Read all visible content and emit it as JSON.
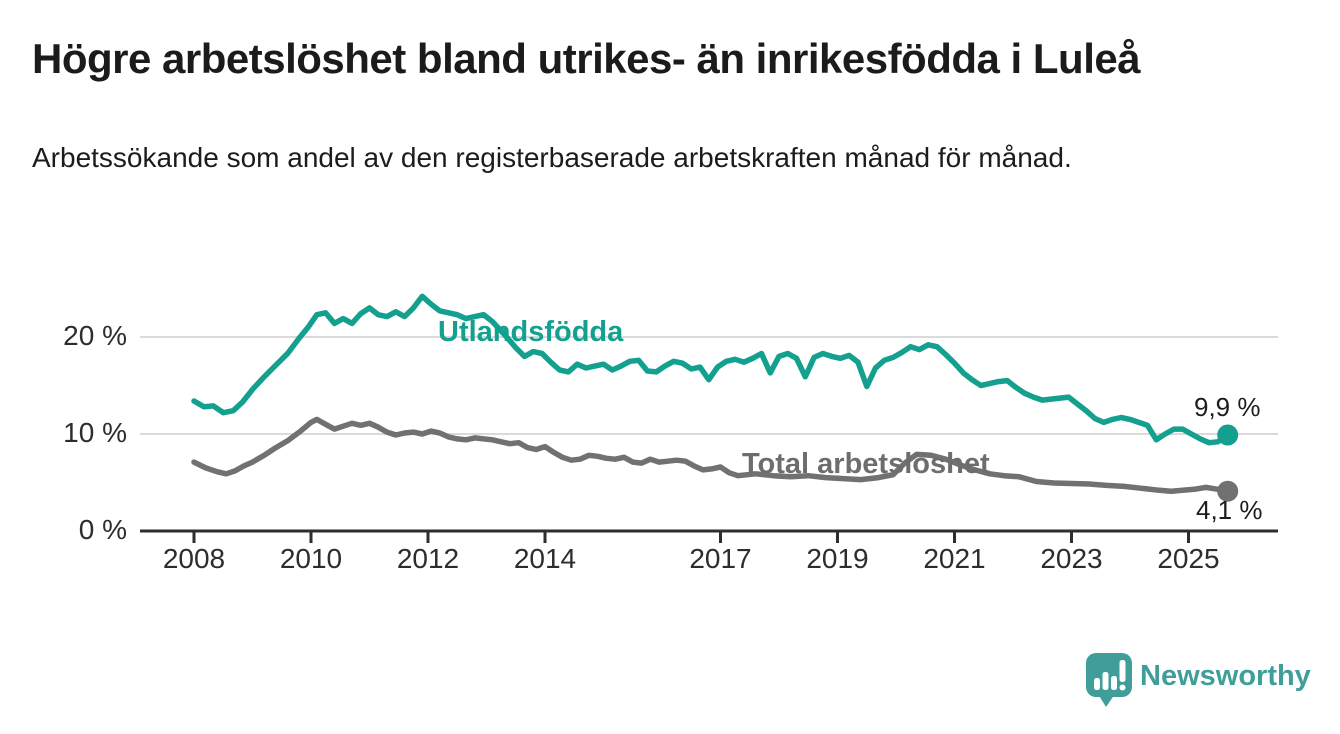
{
  "title": "Högre arbetslöshet bland utrikes- än inrikesfödda i Luleå",
  "subtitle": "Arbetssökande som andel av den registerbaserade arbetskraften månad för månad.",
  "chart_data": {
    "type": "line",
    "unit": "%",
    "legend_position": "inline-labels",
    "grid": true,
    "x_axis": {
      "ticks": [
        2008,
        2010,
        2012,
        2014,
        2017,
        2019,
        2021,
        2023,
        2025
      ],
      "range": [
        2007.1,
        2026.4
      ]
    },
    "y_axis": {
      "ticks": [
        {
          "value": 0,
          "label": "0 %"
        },
        {
          "value": 10,
          "label": "10 %"
        },
        {
          "value": 20,
          "label": "20 %"
        }
      ],
      "range": [
        0,
        25
      ]
    },
    "series": [
      {
        "name": "Utlandsfödda",
        "color": "#13a08e",
        "end_label": "9,9 %",
        "end_value": 9.9,
        "points": [
          [
            2008.0,
            13.4
          ],
          [
            2008.17,
            12.8
          ],
          [
            2008.33,
            12.9
          ],
          [
            2008.5,
            12.2
          ],
          [
            2008.67,
            12.4
          ],
          [
            2008.83,
            13.3
          ],
          [
            2009.0,
            14.6
          ],
          [
            2009.2,
            15.9
          ],
          [
            2009.4,
            17.1
          ],
          [
            2009.6,
            18.3
          ],
          [
            2009.8,
            19.9
          ],
          [
            2009.95,
            21.0
          ],
          [
            2010.1,
            22.3
          ],
          [
            2010.25,
            22.5
          ],
          [
            2010.4,
            21.4
          ],
          [
            2010.55,
            21.9
          ],
          [
            2010.7,
            21.4
          ],
          [
            2010.85,
            22.4
          ],
          [
            2011.0,
            23.0
          ],
          [
            2011.15,
            22.3
          ],
          [
            2011.3,
            22.1
          ],
          [
            2011.45,
            22.6
          ],
          [
            2011.6,
            22.1
          ],
          [
            2011.75,
            23.0
          ],
          [
            2011.9,
            24.2
          ],
          [
            2012.05,
            23.4
          ],
          [
            2012.2,
            22.7
          ],
          [
            2012.35,
            22.5
          ],
          [
            2012.5,
            22.3
          ],
          [
            2012.65,
            21.9
          ],
          [
            2012.8,
            22.1
          ],
          [
            2012.95,
            22.3
          ],
          [
            2013.1,
            21.6
          ],
          [
            2013.3,
            20.3
          ],
          [
            2013.5,
            18.9
          ],
          [
            2013.65,
            18.0
          ],
          [
            2013.8,
            18.5
          ],
          [
            2013.95,
            18.3
          ],
          [
            2014.1,
            17.4
          ],
          [
            2014.25,
            16.6
          ],
          [
            2014.4,
            16.4
          ],
          [
            2014.55,
            17.2
          ],
          [
            2014.7,
            16.8
          ],
          [
            2014.85,
            17.0
          ],
          [
            2015.0,
            17.2
          ],
          [
            2015.15,
            16.6
          ],
          [
            2015.3,
            17.0
          ],
          [
            2015.45,
            17.5
          ],
          [
            2015.6,
            17.6
          ],
          [
            2015.75,
            16.5
          ],
          [
            2015.9,
            16.4
          ],
          [
            2016.05,
            17.0
          ],
          [
            2016.2,
            17.5
          ],
          [
            2016.35,
            17.3
          ],
          [
            2016.5,
            16.7
          ],
          [
            2016.65,
            16.9
          ],
          [
            2016.8,
            15.6
          ],
          [
            2016.95,
            16.9
          ],
          [
            2017.1,
            17.5
          ],
          [
            2017.25,
            17.7
          ],
          [
            2017.4,
            17.4
          ],
          [
            2017.55,
            17.8
          ],
          [
            2017.7,
            18.3
          ],
          [
            2017.85,
            16.3
          ],
          [
            2018.0,
            18.0
          ],
          [
            2018.15,
            18.3
          ],
          [
            2018.3,
            17.8
          ],
          [
            2018.45,
            15.9
          ],
          [
            2018.6,
            17.9
          ],
          [
            2018.75,
            18.3
          ],
          [
            2018.9,
            18.0
          ],
          [
            2019.05,
            17.8
          ],
          [
            2019.2,
            18.1
          ],
          [
            2019.35,
            17.4
          ],
          [
            2019.5,
            14.9
          ],
          [
            2019.65,
            16.8
          ],
          [
            2019.8,
            17.6
          ],
          [
            2019.95,
            17.9
          ],
          [
            2020.1,
            18.4
          ],
          [
            2020.25,
            19.0
          ],
          [
            2020.4,
            18.7
          ],
          [
            2020.55,
            19.2
          ],
          [
            2020.7,
            19.0
          ],
          [
            2020.85,
            18.2
          ],
          [
            2021.0,
            17.3
          ],
          [
            2021.15,
            16.3
          ],
          [
            2021.3,
            15.6
          ],
          [
            2021.45,
            15.0
          ],
          [
            2021.6,
            15.2
          ],
          [
            2021.75,
            15.4
          ],
          [
            2021.9,
            15.5
          ],
          [
            2022.05,
            14.8
          ],
          [
            2022.2,
            14.2
          ],
          [
            2022.35,
            13.8
          ],
          [
            2022.5,
            13.5
          ],
          [
            2022.65,
            13.6
          ],
          [
            2022.8,
            13.7
          ],
          [
            2022.95,
            13.8
          ],
          [
            2023.1,
            13.1
          ],
          [
            2023.25,
            12.4
          ],
          [
            2023.4,
            11.6
          ],
          [
            2023.55,
            11.2
          ],
          [
            2023.7,
            11.5
          ],
          [
            2023.85,
            11.7
          ],
          [
            2024.0,
            11.5
          ],
          [
            2024.15,
            11.2
          ],
          [
            2024.3,
            10.9
          ],
          [
            2024.45,
            9.4
          ],
          [
            2024.6,
            10.0
          ],
          [
            2024.75,
            10.5
          ],
          [
            2024.9,
            10.5
          ],
          [
            2025.05,
            10.0
          ],
          [
            2025.2,
            9.5
          ],
          [
            2025.35,
            9.1
          ],
          [
            2025.5,
            9.2
          ],
          [
            2025.67,
            9.9
          ]
        ]
      },
      {
        "name": "Total arbetslöshet",
        "color": "#717171",
        "end_label": "4,1 %",
        "end_value": 4.1,
        "points": [
          [
            2008.0,
            7.1
          ],
          [
            2008.2,
            6.5
          ],
          [
            2008.4,
            6.1
          ],
          [
            2008.55,
            5.9
          ],
          [
            2008.7,
            6.2
          ],
          [
            2008.85,
            6.7
          ],
          [
            2009.0,
            7.1
          ],
          [
            2009.2,
            7.8
          ],
          [
            2009.4,
            8.6
          ],
          [
            2009.6,
            9.3
          ],
          [
            2009.8,
            10.2
          ],
          [
            2010.0,
            11.2
          ],
          [
            2010.1,
            11.5
          ],
          [
            2010.25,
            11.0
          ],
          [
            2010.4,
            10.5
          ],
          [
            2010.55,
            10.8
          ],
          [
            2010.7,
            11.1
          ],
          [
            2010.85,
            10.9
          ],
          [
            2011.0,
            11.1
          ],
          [
            2011.15,
            10.7
          ],
          [
            2011.3,
            10.2
          ],
          [
            2011.45,
            9.9
          ],
          [
            2011.6,
            10.1
          ],
          [
            2011.75,
            10.2
          ],
          [
            2011.9,
            10.0
          ],
          [
            2012.05,
            10.3
          ],
          [
            2012.2,
            10.1
          ],
          [
            2012.35,
            9.7
          ],
          [
            2012.5,
            9.5
          ],
          [
            2012.65,
            9.4
          ],
          [
            2012.8,
            9.6
          ],
          [
            2012.95,
            9.5
          ],
          [
            2013.1,
            9.4
          ],
          [
            2013.25,
            9.2
          ],
          [
            2013.4,
            9.0
          ],
          [
            2013.55,
            9.1
          ],
          [
            2013.7,
            8.6
          ],
          [
            2013.85,
            8.4
          ],
          [
            2014.0,
            8.7
          ],
          [
            2014.15,
            8.1
          ],
          [
            2014.3,
            7.6
          ],
          [
            2014.45,
            7.3
          ],
          [
            2014.6,
            7.4
          ],
          [
            2014.75,
            7.8
          ],
          [
            2014.9,
            7.7
          ],
          [
            2015.05,
            7.5
          ],
          [
            2015.2,
            7.4
          ],
          [
            2015.35,
            7.6
          ],
          [
            2015.5,
            7.1
          ],
          [
            2015.65,
            7.0
          ],
          [
            2015.8,
            7.4
          ],
          [
            2015.95,
            7.1
          ],
          [
            2016.1,
            7.2
          ],
          [
            2016.25,
            7.3
          ],
          [
            2016.4,
            7.2
          ],
          [
            2016.55,
            6.7
          ],
          [
            2016.7,
            6.3
          ],
          [
            2016.85,
            6.4
          ],
          [
            2017.0,
            6.6
          ],
          [
            2017.15,
            6.0
          ],
          [
            2017.3,
            5.7
          ],
          [
            2017.6,
            5.9
          ],
          [
            2017.9,
            5.7
          ],
          [
            2018.2,
            5.6
          ],
          [
            2018.5,
            5.7
          ],
          [
            2018.8,
            5.5
          ],
          [
            2019.1,
            5.4
          ],
          [
            2019.4,
            5.3
          ],
          [
            2019.7,
            5.5
          ],
          [
            2019.95,
            5.8
          ],
          [
            2020.15,
            7.0
          ],
          [
            2020.35,
            7.9
          ],
          [
            2020.6,
            7.8
          ],
          [
            2020.85,
            7.4
          ],
          [
            2021.1,
            6.8
          ],
          [
            2021.35,
            6.3
          ],
          [
            2021.6,
            5.9
          ],
          [
            2021.85,
            5.7
          ],
          [
            2022.1,
            5.6
          ],
          [
            2022.4,
            5.1
          ],
          [
            2022.7,
            4.95
          ],
          [
            2023.0,
            4.9
          ],
          [
            2023.3,
            4.85
          ],
          [
            2023.6,
            4.7
          ],
          [
            2023.9,
            4.6
          ],
          [
            2024.2,
            4.4
          ],
          [
            2024.5,
            4.2
          ],
          [
            2024.7,
            4.1
          ],
          [
            2024.9,
            4.2
          ],
          [
            2025.1,
            4.3
          ],
          [
            2025.3,
            4.5
          ],
          [
            2025.5,
            4.3
          ],
          [
            2025.67,
            4.1
          ]
        ]
      }
    ],
    "colors": {
      "grid": "#dadada",
      "axis": "#2e2e2e",
      "end_label_text": "#1d1d1d"
    }
  },
  "branding": {
    "wordmark": "Newsworthy",
    "color": "#3f9e99",
    "icon": "newsworthy-speech-bubble-chart-icon"
  }
}
